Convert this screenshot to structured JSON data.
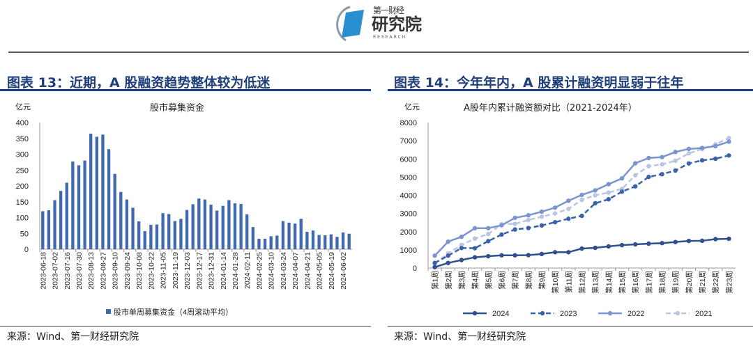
{
  "header": {
    "logo_top": "第一财经",
    "logo_main": "研究院",
    "logo_sub": "RESEARCH"
  },
  "left": {
    "section_title": "图表 13：近期，A 股融资趋势整体较为低迷",
    "source": "来源：Wind、第一财经研究院"
  },
  "right": {
    "section_title": "图表 14：今年年内，A 股累计融资明显弱于往年",
    "source": "来源：Wind、第一财经研究院"
  },
  "colors": {
    "title": "#1f3f7a",
    "bar": "#4169b0",
    "s2024": "#2f4f8f",
    "s2023": "#3a62a8",
    "s2022": "#7b93cf",
    "s2021": "#b9c6e3"
  },
  "chart_data": [
    {
      "type": "bar",
      "title": "股市募集资金",
      "ylabel": "亿元",
      "ylim": [
        0,
        400
      ],
      "yticks": [
        0,
        50,
        100,
        150,
        200,
        250,
        300,
        350,
        400
      ],
      "legend": "股市单周募集资金（4周滚动平均）",
      "legend_position": "bottom",
      "tick_labels": [
        "2023-06-18",
        "2023-07-02",
        "2023-07-16",
        "2023-07-30",
        "2023-08-13",
        "2023-08-27",
        "2023-09-10",
        "2023-09-24",
        "2023-10-08",
        "2023-10-22",
        "2023-11-05",
        "2023-11-19",
        "2023-12-03",
        "2023-12-17",
        "2023-12-31",
        "2024-01-14",
        "2024-01-28",
        "2024-02-11",
        "2024-02-25",
        "2024-03-10",
        "2024-03-24",
        "2024-04-07",
        "2024-04-21",
        "2024-05-05",
        "2024-05-19",
        "2024-06-02"
      ],
      "values": [
        120,
        123,
        155,
        184,
        210,
        277,
        265,
        280,
        365,
        355,
        362,
        316,
        238,
        181,
        157,
        131,
        88,
        57,
        77,
        78,
        114,
        111,
        89,
        96,
        124,
        142,
        160,
        157,
        141,
        122,
        137,
        155,
        145,
        143,
        110,
        70,
        33,
        33,
        41,
        43,
        89,
        84,
        81,
        96,
        55,
        59,
        45,
        44,
        47,
        39,
        53,
        49
      ]
    },
    {
      "type": "line",
      "title": "A股年内累计融资额对比（2021-2024年）",
      "ylabel": "亿元",
      "ylim": [
        0,
        8000
      ],
      "yticks": [
        0,
        1000,
        2000,
        3000,
        4000,
        5000,
        6000,
        7000,
        8000
      ],
      "legend_position": "bottom",
      "categories": [
        "第1周",
        "第2周",
        "第3周",
        "第4周",
        "第5周",
        "第6周",
        "第7周",
        "第8周",
        "第9周",
        "第10周",
        "第11周",
        "第12周",
        "第13周",
        "第14周",
        "第15周",
        "第16周",
        "第17周",
        "第18周",
        "第19周",
        "第20周",
        "第21周",
        "第22周",
        "第23周"
      ],
      "series": [
        {
          "name": "2024",
          "style": "solid",
          "values": [
            50,
            280,
            440,
            590,
            650,
            700,
            700,
            710,
            770,
            870,
            870,
            1070,
            1110,
            1190,
            1260,
            1300,
            1340,
            1370,
            1430,
            1490,
            1500,
            1590,
            1610
          ]
        },
        {
          "name": "2023",
          "style": "dashed",
          "values": [
            280,
            680,
            1100,
            1090,
            1480,
            1840,
            2120,
            2200,
            2340,
            2520,
            2710,
            2870,
            3560,
            3780,
            4200,
            4490,
            5010,
            5160,
            5360,
            5750,
            5920,
            6010,
            6190
          ]
        },
        {
          "name": "2022",
          "style": "solid",
          "values": [
            680,
            1450,
            1720,
            2190,
            2190,
            2350,
            2760,
            2900,
            3100,
            3320,
            3700,
            4020,
            4270,
            4610,
            4930,
            5760,
            6050,
            6100,
            6380,
            6550,
            6600,
            6700,
            6950
          ]
        },
        {
          "name": "2021",
          "style": "dashed",
          "values": [
            250,
            800,
            1270,
            1620,
            1870,
            2410,
            2430,
            2640,
            2820,
            3000,
            3250,
            3750,
            4000,
            4150,
            4350,
            5100,
            5600,
            5700,
            5900,
            6300,
            6550,
            6800,
            7150
          ]
        }
      ]
    }
  ]
}
